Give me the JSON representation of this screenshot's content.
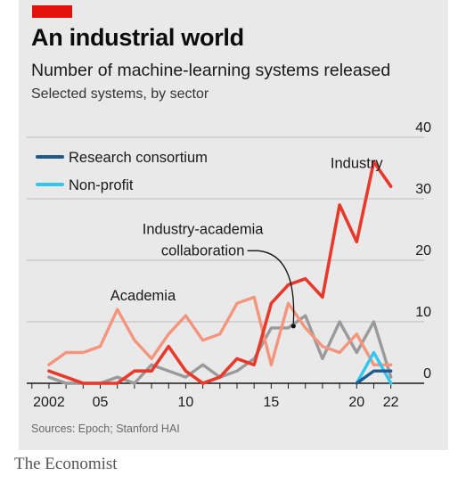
{
  "header": {
    "title": "An industrial world",
    "subtitle": "Number of machine-learning systems released",
    "subsubtitle": "Selected systems, by sector"
  },
  "footer": {
    "source": "Sources: Epoch; Stanford HAI",
    "brand": "The Economist"
  },
  "colors": {
    "background": "#e9e9e9",
    "accent_tag": "#e3120b",
    "grid": "#bdbdbd",
    "axis": "#1a1a1a"
  },
  "chart_data": {
    "type": "line",
    "title": "An industrial world",
    "subtitle": "Number of machine-learning systems released",
    "xlabel": "",
    "ylabel": "",
    "xlim": [
      2000.7,
      2022.8
    ],
    "ylim": [
      0,
      40
    ],
    "y_ticks": [
      0,
      10,
      20,
      30,
      40
    ],
    "x_ticks": [
      {
        "value": 2002,
        "label": "2002"
      },
      {
        "value": 2005,
        "label": "05"
      },
      {
        "value": 2010,
        "label": "10"
      },
      {
        "value": 2015,
        "label": "15"
      },
      {
        "value": 2020,
        "label": "20"
      },
      {
        "value": 2022,
        "label": "22"
      }
    ],
    "grid": "horizontal",
    "y_axis_side": "right",
    "legend_position": "top-left",
    "series": [
      {
        "name": "Industry-academia collaboration",
        "color": "#9a9a9a",
        "width": 3.4,
        "x": [
          2002,
          2003,
          2004,
          2005,
          2006,
          2007,
          2008,
          2009,
          2010,
          2011,
          2012,
          2013,
          2014,
          2015,
          2016,
          2017,
          2018,
          2019,
          2020,
          2021,
          2022
        ],
        "y": [
          1,
          0,
          0,
          0,
          1,
          0,
          3,
          2,
          1,
          3,
          1,
          2,
          4,
          9,
          9,
          11,
          4,
          10,
          5,
          10,
          1
        ]
      },
      {
        "name": "Academia",
        "color": "#f5957d",
        "width": 3.4,
        "x": [
          2002,
          2003,
          2004,
          2005,
          2006,
          2007,
          2008,
          2009,
          2010,
          2011,
          2012,
          2013,
          2014,
          2015,
          2016,
          2017,
          2018,
          2019,
          2020,
          2021,
          2022
        ],
        "y": [
          3,
          5,
          5,
          6,
          12,
          7,
          4,
          8,
          11,
          7,
          8,
          13,
          14,
          3,
          13,
          9,
          6,
          5,
          8,
          3,
          3
        ]
      },
      {
        "name": "Industry",
        "color": "#e8392a",
        "width": 3.6,
        "x": [
          2002,
          2003,
          2004,
          2005,
          2006,
          2007,
          2008,
          2009,
          2010,
          2011,
          2012,
          2013,
          2014,
          2015,
          2016,
          2017,
          2018,
          2019,
          2020,
          2021,
          2022
        ],
        "y": [
          2,
          1,
          0,
          0,
          0,
          2,
          2,
          6,
          2,
          0,
          1,
          4,
          3,
          13,
          16,
          17,
          14,
          29,
          23,
          36,
          32
        ]
      },
      {
        "name": "Non-profit",
        "color": "#33c6ee",
        "width": 3.4,
        "x": [
          2020,
          2021,
          2022
        ],
        "y": [
          0,
          5,
          0
        ]
      },
      {
        "name": "Research consortium",
        "color": "#1f5b8c",
        "width": 3.4,
        "x": [
          2020,
          2021,
          2022
        ],
        "y": [
          0,
          2,
          2
        ]
      }
    ],
    "legend": [
      {
        "label": "Research consortium",
        "color": "#1f5b8c"
      },
      {
        "label": "Non-profit",
        "color": "#33c6ee"
      }
    ],
    "annotations": [
      {
        "text": "Industry",
        "x": 2020,
        "y": 35
      },
      {
        "text": "Academia",
        "x": 2007.5,
        "y": 13.5
      },
      {
        "text": "Industry-academia\ncollaboration",
        "x": 2011,
        "y": 24.3,
        "arrow_to": [
          2016.3,
          9.3
        ]
      }
    ]
  }
}
